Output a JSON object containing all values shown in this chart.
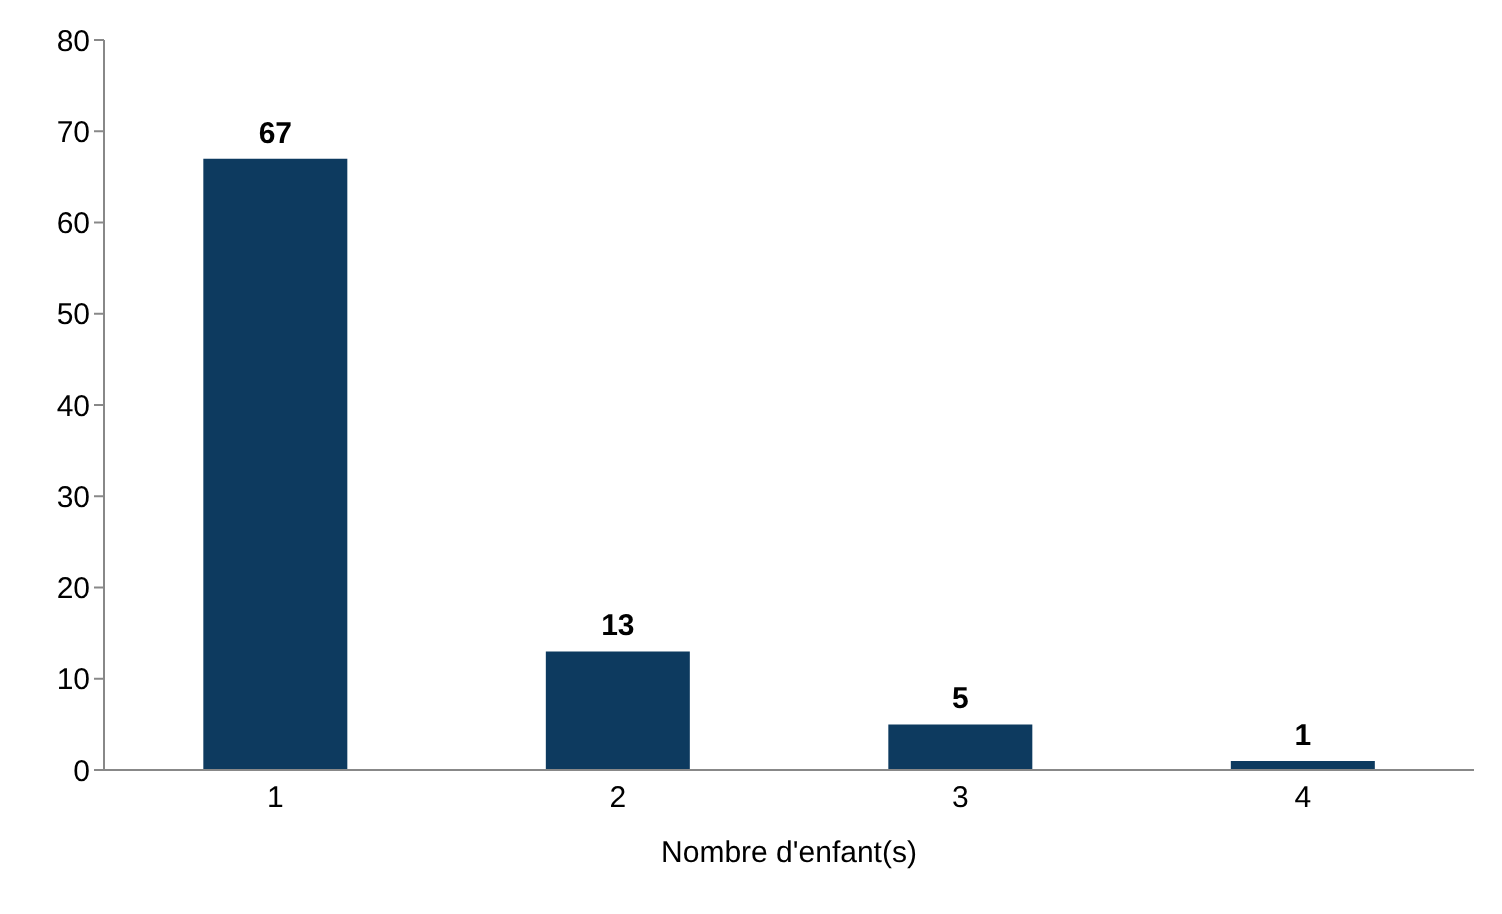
{
  "chart_data": {
    "type": "bar",
    "xlabel": "Nombre d'enfant(s)",
    "categories": [
      "1",
      "2",
      "3",
      "4"
    ],
    "values": [
      67,
      13,
      5,
      1
    ],
    "color": "#0d3a5f",
    "ylim": [
      0,
      80
    ],
    "yticks": [
      0,
      10,
      20,
      30,
      40,
      50,
      60,
      70,
      80
    ],
    "grid": false,
    "data_labels": true
  }
}
